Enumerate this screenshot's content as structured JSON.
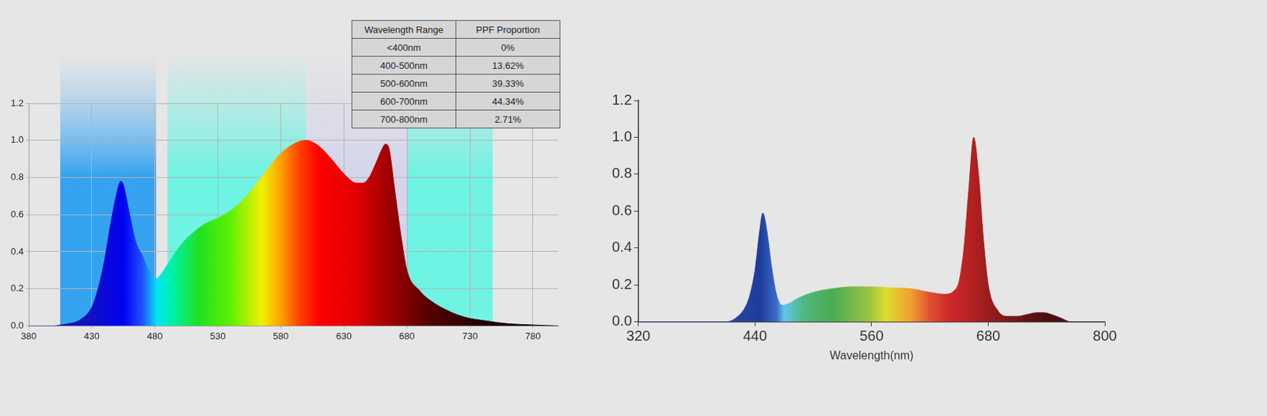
{
  "chart_data": [
    {
      "type": "area",
      "x": [
        380,
        400,
        405,
        410,
        420,
        430,
        435,
        440,
        445,
        450,
        453,
        455,
        460,
        465,
        470,
        475,
        480,
        485,
        490,
        500,
        510,
        520,
        530,
        540,
        550,
        560,
        570,
        580,
        590,
        600,
        610,
        620,
        630,
        640,
        645,
        650,
        655,
        660,
        663,
        666,
        670,
        675,
        680,
        690,
        700,
        710,
        720,
        730,
        740,
        750,
        760,
        780,
        800
      ],
      "values": [
        0,
        0,
        0.005,
        0.01,
        0.03,
        0.1,
        0.2,
        0.35,
        0.55,
        0.72,
        0.78,
        0.76,
        0.6,
        0.45,
        0.38,
        0.3,
        0.25,
        0.28,
        0.33,
        0.43,
        0.5,
        0.55,
        0.58,
        0.62,
        0.68,
        0.76,
        0.85,
        0.93,
        0.98,
        1.0,
        0.97,
        0.9,
        0.82,
        0.77,
        0.77,
        0.8,
        0.87,
        0.95,
        0.98,
        0.95,
        0.75,
        0.5,
        0.3,
        0.19,
        0.13,
        0.09,
        0.06,
        0.04,
        0.03,
        0.02,
        0.012,
        0.005,
        0
      ],
      "xlim": [
        380,
        800
      ],
      "xticks": [
        380,
        430,
        480,
        530,
        580,
        630,
        680,
        730,
        780
      ],
      "ylim": [
        0,
        1.2
      ],
      "yticks": [
        {
          "value": 0,
          "label": "0.0"
        },
        {
          "value": 0.2,
          "label": "0.2"
        },
        {
          "value": 0.4,
          "label": "0.4"
        },
        {
          "value": 0.6,
          "label": "0.6"
        },
        {
          "value": 0.8,
          "label": "0.8"
        },
        {
          "value": 1.0,
          "label": "1.0"
        },
        {
          "value": 1.2,
          "label": "1.2"
        }
      ],
      "grid": true,
      "bands": [
        {
          "from": 405,
          "to": 481
        },
        {
          "from": 490,
          "to": 600
        },
        {
          "from": 600,
          "to": 680
        },
        {
          "from": 680,
          "to": 748
        }
      ],
      "table": {
        "columns": [
          "Wavelength Range",
          "PPF Proportion"
        ],
        "rows": [
          [
            "<400nm",
            "0%"
          ],
          [
            "400-500nm",
            "13.62%"
          ],
          [
            "500-600nm",
            "39.33%"
          ],
          [
            "600-700nm",
            "44.34%"
          ],
          [
            "700-800nm",
            "2.71%"
          ]
        ]
      }
    },
    {
      "type": "area",
      "x": [
        320,
        400,
        410,
        420,
        430,
        435,
        440,
        445,
        448,
        452,
        457,
        462,
        468,
        475,
        485,
        500,
        520,
        540,
        560,
        580,
        600,
        620,
        635,
        645,
        650,
        655,
        660,
        665,
        670,
        675,
        680,
        690,
        700,
        710,
        720,
        730,
        737,
        745,
        755,
        765,
        800
      ],
      "values": [
        0,
        0,
        0,
        0.02,
        0.08,
        0.15,
        0.28,
        0.5,
        0.59,
        0.5,
        0.3,
        0.15,
        0.09,
        0.1,
        0.13,
        0.16,
        0.18,
        0.19,
        0.19,
        0.185,
        0.18,
        0.16,
        0.15,
        0.17,
        0.22,
        0.4,
        0.72,
        1.0,
        0.8,
        0.45,
        0.2,
        0.06,
        0.03,
        0.03,
        0.04,
        0.05,
        0.05,
        0.04,
        0.02,
        0,
        0
      ],
      "xlim": [
        320,
        800
      ],
      "xticks": [
        320,
        440,
        560,
        680,
        800
      ],
      "ylim": [
        0,
        1.2
      ],
      "yticks": [
        {
          "value": 0,
          "label": "0.0"
        },
        {
          "value": 0.2,
          "label": "0.2"
        },
        {
          "value": 0.4,
          "label": "0.4"
        },
        {
          "value": 0.6,
          "label": "0.6"
        },
        {
          "value": 0.8,
          "label": "0.8"
        },
        {
          "value": 1.0,
          "label": "1.0"
        },
        {
          "value": 1.2,
          "label": "1.2"
        }
      ],
      "grid": false,
      "xlabel": "Wavelength(nm)"
    }
  ]
}
